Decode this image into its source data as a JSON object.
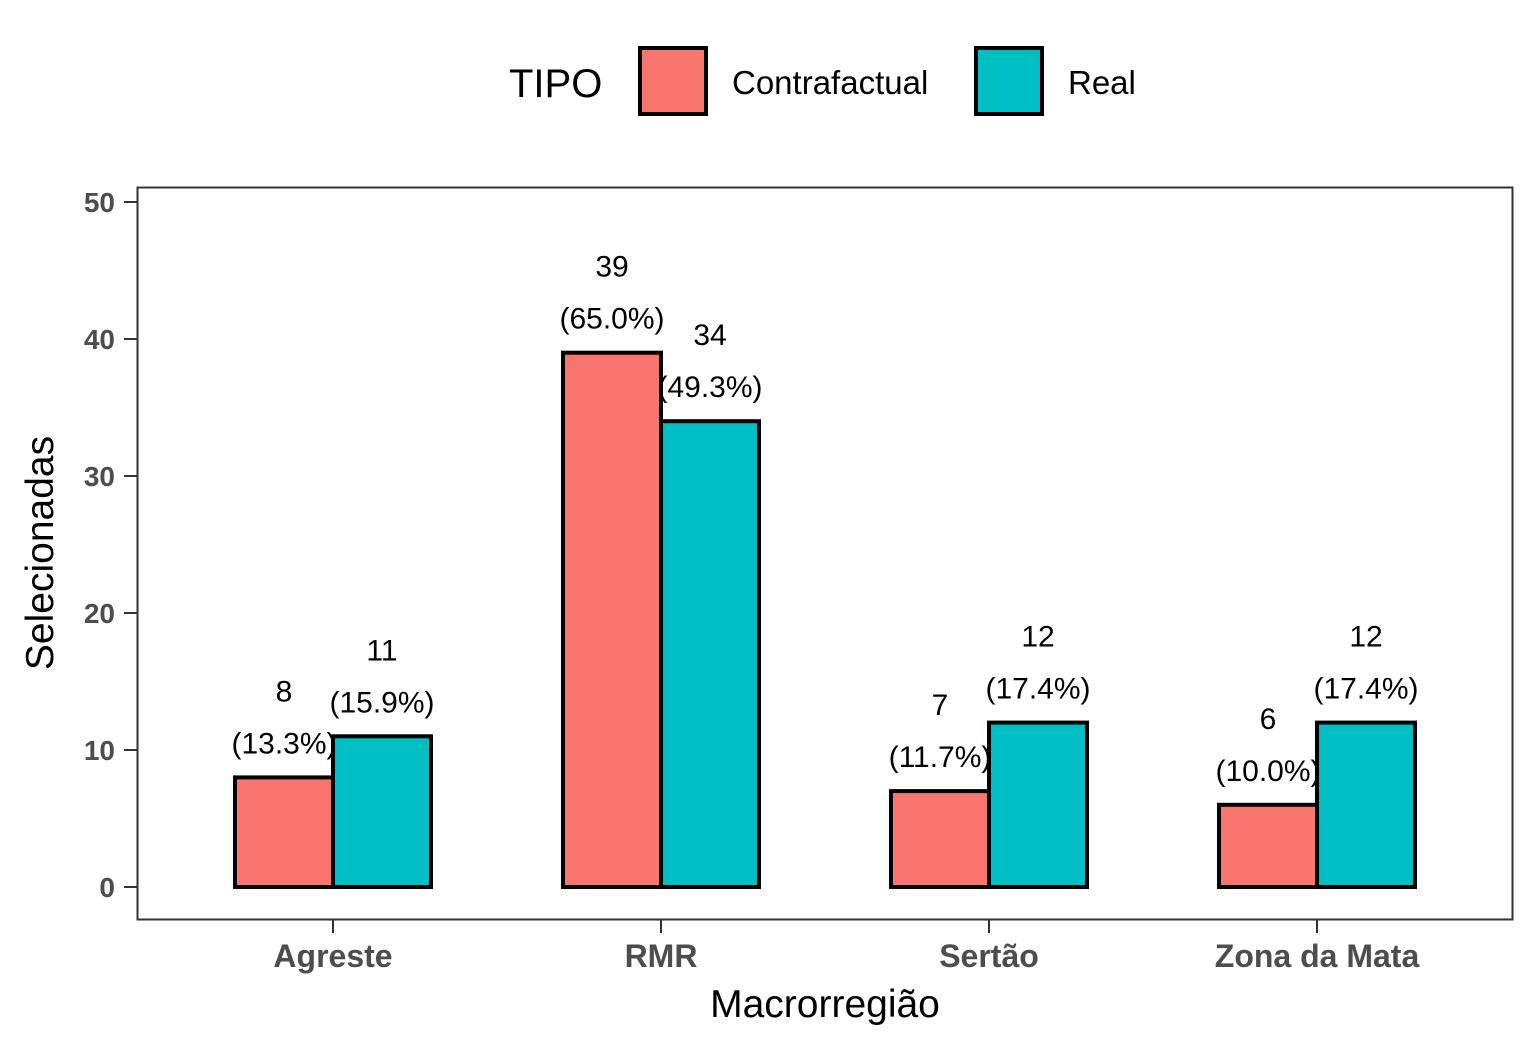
{
  "chart_data": {
    "type": "bar",
    "categories": [
      "Agreste",
      "RMR",
      "Sertão",
      "Zona da Mata"
    ],
    "series": [
      {
        "name": "Contrafactual",
        "color": "#F8766D",
        "values": [
          8,
          39,
          7,
          6
        ],
        "labels": [
          "8",
          "39",
          "7",
          "6"
        ],
        "pct_labels": [
          "(13.3%)",
          "(65.0%)",
          "(11.7%)",
          "(10.0%)"
        ]
      },
      {
        "name": "Real",
        "color": "#00BFC4",
        "values": [
          11,
          34,
          12,
          12
        ],
        "labels": [
          "11",
          "34",
          "12",
          "12"
        ],
        "pct_labels": [
          "(15.9%)",
          "(49.3%)",
          "(17.4%)",
          "(17.4%)"
        ]
      }
    ],
    "legend_title": "TIPO",
    "legend_position": "top",
    "xlabel": "Macrorregião",
    "ylabel": "Selecionadas",
    "ylim": [
      0,
      50
    ],
    "yticks": [
      "0",
      "10",
      "20",
      "30",
      "40",
      "50"
    ],
    "grid": false
  }
}
